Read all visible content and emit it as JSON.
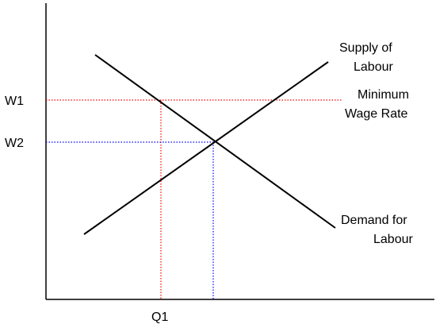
{
  "labels": {
    "supply_line1": "Supply of",
    "supply_line2": "Labour",
    "demand_line1": "Demand for",
    "demand_line2": "Labour",
    "minwage_line1": "Minimum",
    "minwage_line2": "Wage Rate",
    "w1": "W1",
    "w2": "W2",
    "q1": "Q1"
  },
  "colors": {
    "axis": "#000000",
    "curve": "#000000",
    "minimum_wage_guide": "#ff0000",
    "equilibrium_guide": "#0000ff"
  }
}
